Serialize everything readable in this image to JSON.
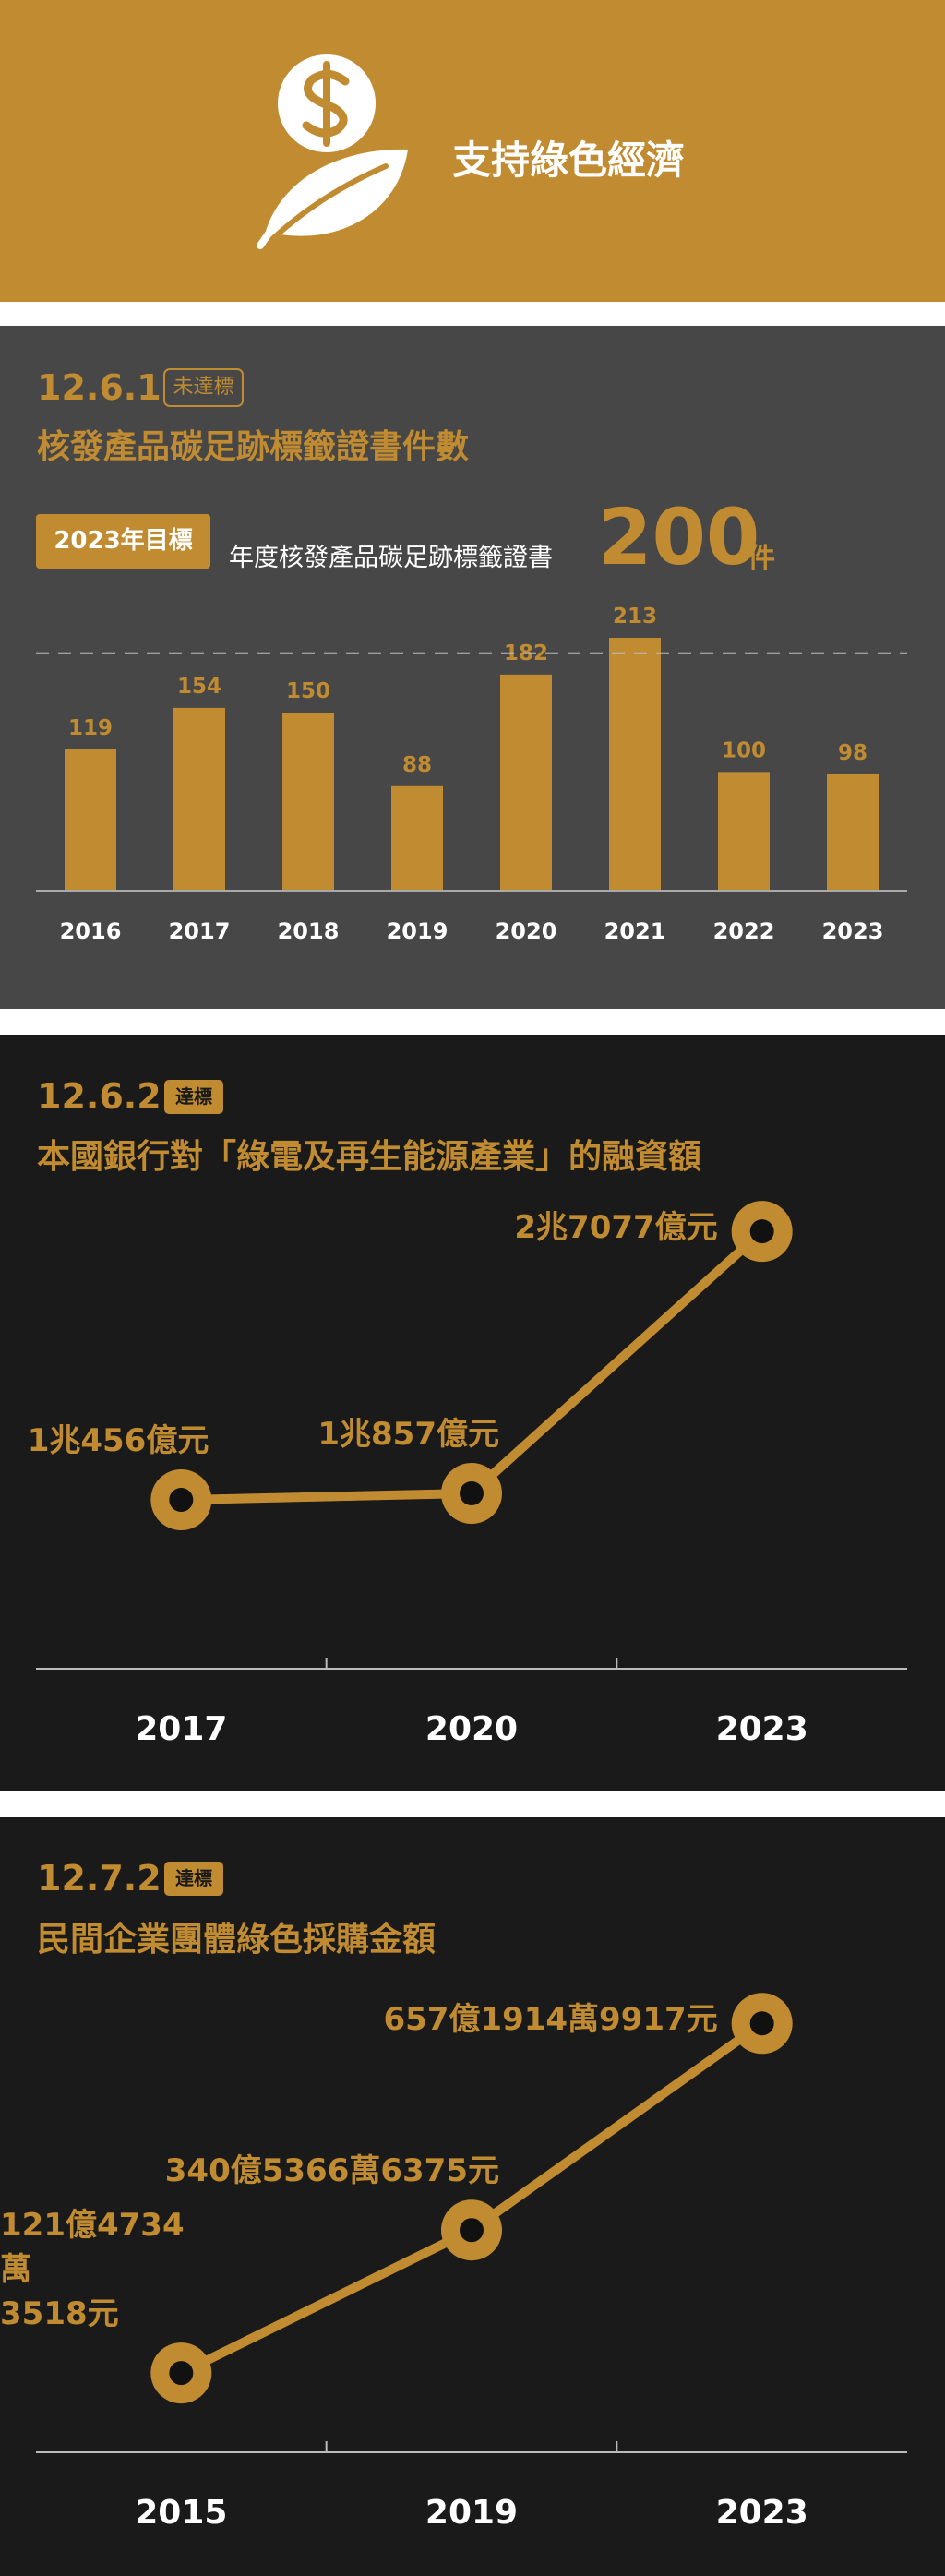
{
  "header": {
    "title": "支持綠色經濟"
  },
  "chart_data": [
    {
      "type": "bar",
      "code": "12.6.1",
      "status": "未達標",
      "title": "核發產品碳足跡標籤證書件數",
      "target": {
        "label": "2023年目標",
        "text": "年度核發產品碳足跡標籤證書",
        "value": 200,
        "unit": "件"
      },
      "categories": [
        "2016",
        "2017",
        "2018",
        "2019",
        "2020",
        "2021",
        "2022",
        "2023"
      ],
      "values": [
        119,
        154,
        150,
        88,
        182,
        213,
        100,
        98
      ],
      "color": "#c18c31",
      "ylim": [
        0,
        220
      ]
    },
    {
      "type": "line",
      "code": "12.6.2",
      "status": "達標",
      "title": "本國銀行對「綠電及再生能源產業」的融資額",
      "categories": [
        "2017",
        "2020",
        "2023"
      ],
      "values": [
        10456,
        10857,
        27077
      ],
      "value_labels": [
        "1兆456億元",
        "1兆857億元",
        "2兆7077億元"
      ],
      "color": "#c18c31",
      "ylim": [
        0,
        28000
      ]
    },
    {
      "type": "line",
      "code": "12.7.2",
      "status": "達標",
      "title": "民間企業團體綠色採購金額",
      "categories": [
        "2015",
        "2019",
        "2023"
      ],
      "values": [
        12147343518,
        34053666375,
        65719149917
      ],
      "value_labels": [
        "121億4734萬\n3518元",
        "340億5366萬6375元",
        "657億1914萬9917元"
      ],
      "color": "#c18c31",
      "ylim": [
        0,
        70000000000
      ]
    }
  ]
}
